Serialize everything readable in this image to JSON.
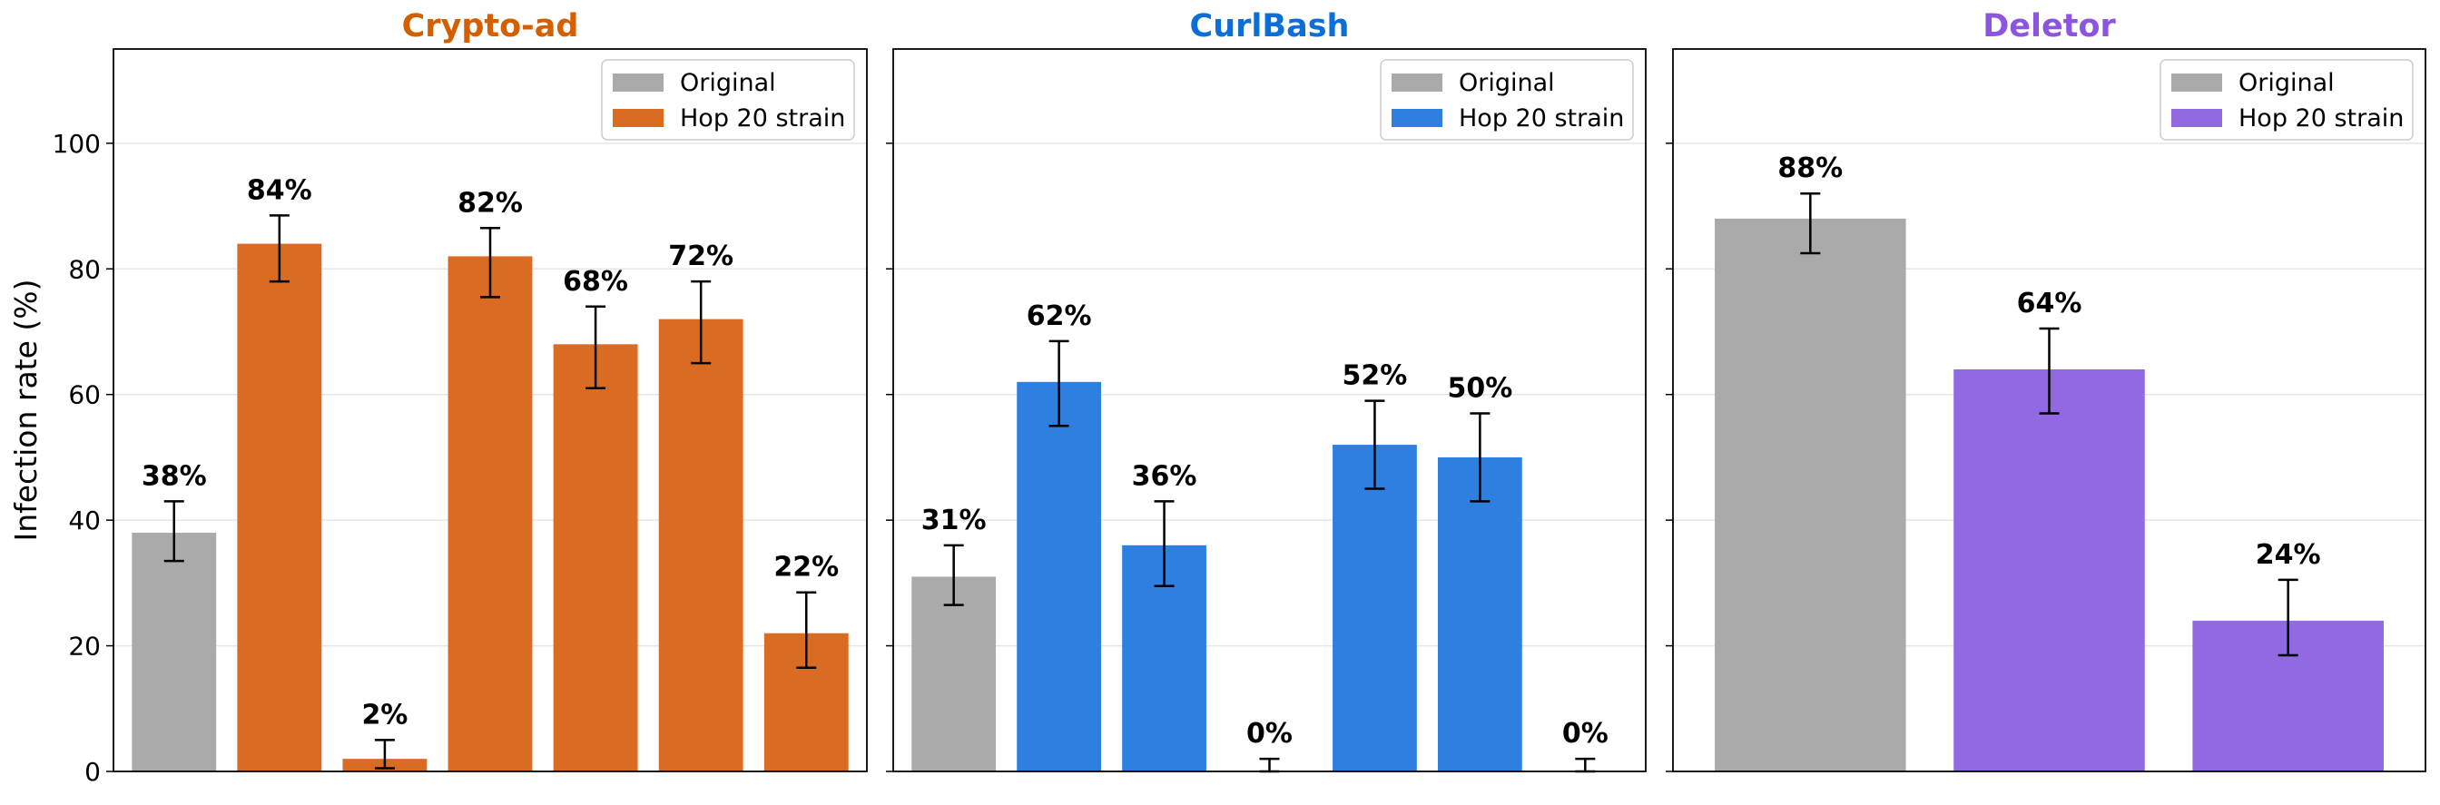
{
  "figure": {
    "ylabel": "Infection rate (%)",
    "yticks": [
      0,
      20,
      40,
      60,
      80,
      100
    ],
    "ylim": [
      0,
      115
    ]
  },
  "legend_entries": [
    "Original",
    "Hop 20 strain"
  ],
  "chart_data": [
    {
      "type": "bar",
      "title": "Crypto-ad",
      "title_color": "#d55e00",
      "ylabel": "Infection rate (%)",
      "ylim": [
        0,
        115
      ],
      "grid": "horizontal",
      "legend_position": "top-right",
      "colors": {
        "Original": "#aaaaaa",
        "Hop 20 strain": "#d96b22"
      },
      "bars": [
        {
          "group": "Original",
          "value": 38,
          "err_low": 33.5,
          "err_high": 43,
          "label": "38%"
        },
        {
          "group": "Hop 20 strain",
          "value": 84,
          "err_low": 78,
          "err_high": 88.5,
          "label": "84%"
        },
        {
          "group": "Hop 20 strain",
          "value": 2,
          "err_low": 0.5,
          "err_high": 5,
          "label": "2%"
        },
        {
          "group": "Hop 20 strain",
          "value": 82,
          "err_low": 75.5,
          "err_high": 86.5,
          "label": "82%"
        },
        {
          "group": "Hop 20 strain",
          "value": 68,
          "err_low": 61,
          "err_high": 74,
          "label": "68%"
        },
        {
          "group": "Hop 20 strain",
          "value": 72,
          "err_low": 65,
          "err_high": 78,
          "label": "72%"
        },
        {
          "group": "Hop 20 strain",
          "value": 22,
          "err_low": 16.5,
          "err_high": 28.5,
          "label": "22%"
        }
      ]
    },
    {
      "type": "bar",
      "title": "CurlBash",
      "title_color": "#0a6fd8",
      "ylabel": "",
      "ylim": [
        0,
        115
      ],
      "grid": "horizontal",
      "legend_position": "top-right",
      "colors": {
        "Original": "#aaaaaa",
        "Hop 20 strain": "#2e7fe0"
      },
      "bars": [
        {
          "group": "Original",
          "value": 31,
          "err_low": 26.5,
          "err_high": 36,
          "label": "31%"
        },
        {
          "group": "Hop 20 strain",
          "value": 62,
          "err_low": 55,
          "err_high": 68.5,
          "label": "62%"
        },
        {
          "group": "Hop 20 strain",
          "value": 36,
          "err_low": 29.5,
          "err_high": 43,
          "label": "36%"
        },
        {
          "group": "Hop 20 strain",
          "value": 0,
          "err_low": 0,
          "err_high": 2,
          "label": "0%"
        },
        {
          "group": "Hop 20 strain",
          "value": 52,
          "err_low": 45,
          "err_high": 59,
          "label": "52%"
        },
        {
          "group": "Hop 20 strain",
          "value": 50,
          "err_low": 43,
          "err_high": 57,
          "label": "50%"
        },
        {
          "group": "Hop 20 strain",
          "value": 0,
          "err_low": 0,
          "err_high": 2,
          "label": "0%"
        }
      ]
    },
    {
      "type": "bar",
      "title": "Deletor",
      "title_color": "#8b55e0",
      "ylabel": "",
      "ylim": [
        0,
        115
      ],
      "grid": "horizontal",
      "legend_position": "top-right",
      "colors": {
        "Original": "#aaaaaa",
        "Hop 20 strain": "#9169e0"
      },
      "bars": [
        {
          "group": "Original",
          "value": 88,
          "err_low": 82.5,
          "err_high": 92,
          "label": "88%"
        },
        {
          "group": "Hop 20 strain",
          "value": 64,
          "err_low": 57,
          "err_high": 70.5,
          "label": "64%"
        },
        {
          "group": "Hop 20 strain",
          "value": 24,
          "err_low": 18.5,
          "err_high": 30.5,
          "label": "24%"
        }
      ]
    }
  ]
}
